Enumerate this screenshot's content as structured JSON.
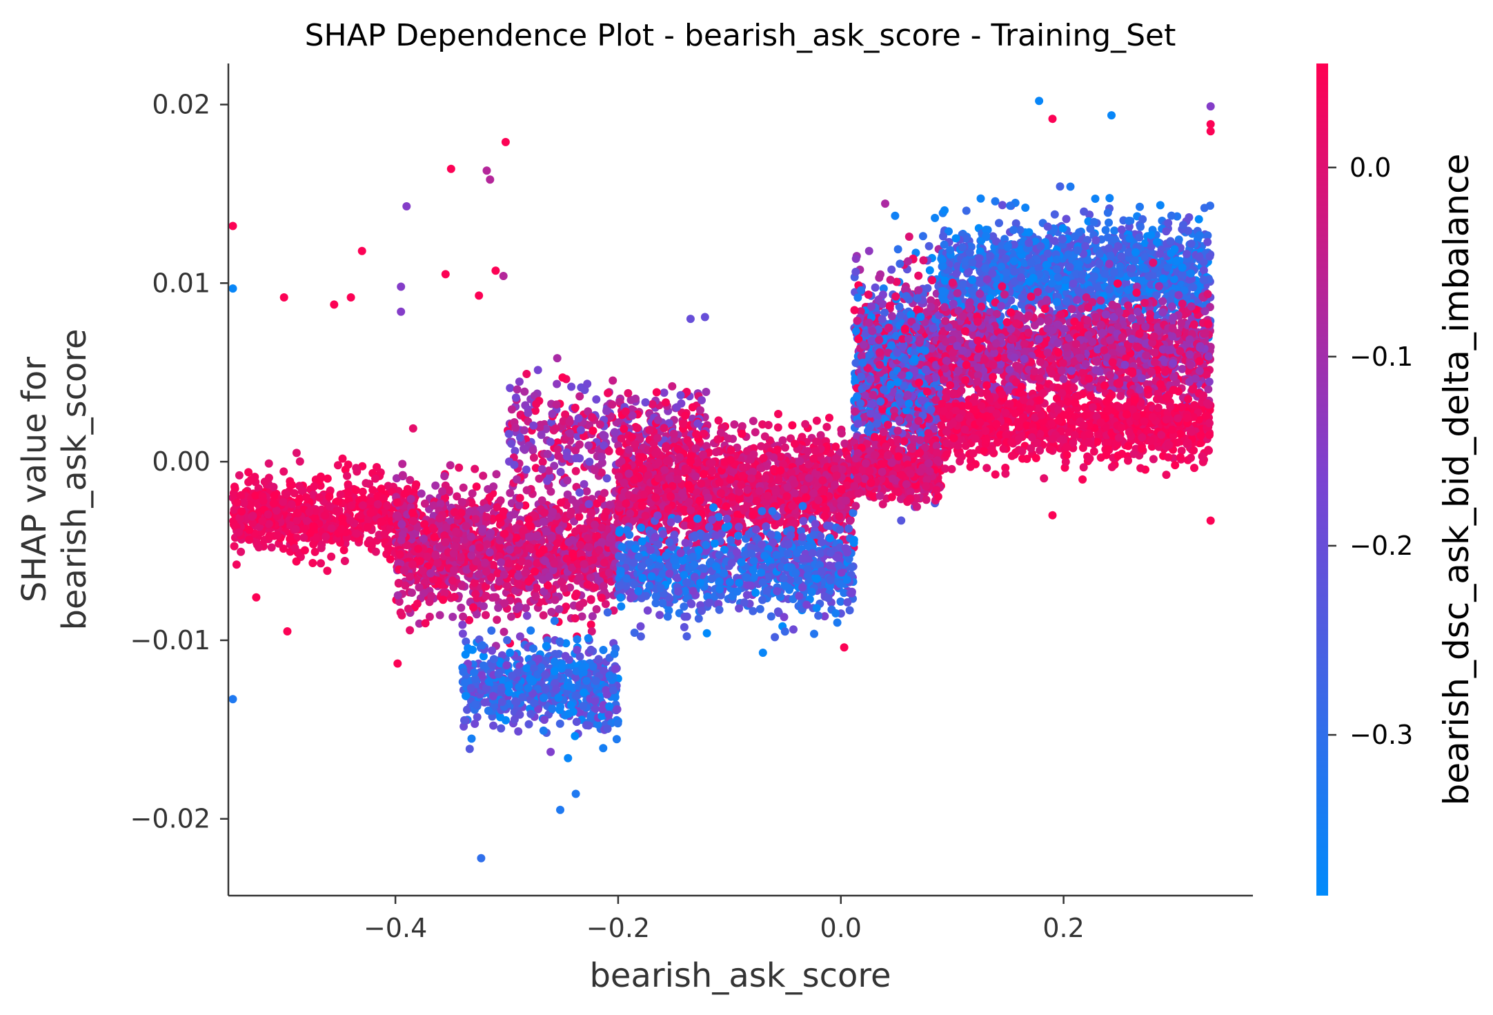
{
  "chart_data": {
    "type": "scatter",
    "title": "SHAP Dependence Plot - bearish_ask_score - Training_Set",
    "xlabel": "bearish_ask_score",
    "ylabel_lines": [
      "SHAP value for",
      "bearish_ask_score"
    ],
    "xlim": [
      -0.55,
      0.37
    ],
    "ylim": [
      -0.0243,
      0.0223
    ],
    "x_ticks": [
      -0.4,
      -0.2,
      0.0,
      0.2
    ],
    "x_tick_labels": [
      "−0.4",
      "−0.2",
      "0.0",
      "0.2"
    ],
    "y_ticks": [
      0.02,
      0.01,
      0.0,
      -0.01,
      -0.02
    ],
    "y_tick_labels": [
      "0.02",
      "0.01",
      "0.00",
      "−0.01",
      "−0.02"
    ],
    "grid": false,
    "colorbar": {
      "label": "bearish_dsc_ask_bid_delta_imbalance",
      "range": [
        -0.385,
        0.055
      ],
      "ticks": [
        0.0,
        -0.1,
        -0.2,
        -0.3
      ],
      "tick_labels": [
        "0.0",
        "−0.1",
        "−0.2",
        "−0.3"
      ],
      "color_low": "#008bfb",
      "color_mid": "#7b42d1",
      "color_high": "#ff0052"
    },
    "notable_points": [
      {
        "x": -0.546,
        "y": 0.0132,
        "c": 0.05
      },
      {
        "x": -0.546,
        "y": 0.0097,
        "c": -0.37
      },
      {
        "x": -0.546,
        "y": -0.0133,
        "c": -0.33
      },
      {
        "x": -0.525,
        "y": -0.0076,
        "c": 0.05
      },
      {
        "x": -0.5,
        "y": 0.0092,
        "c": 0.05
      },
      {
        "x": -0.497,
        "y": -0.0095,
        "c": 0.05
      },
      {
        "x": -0.455,
        "y": 0.0088,
        "c": 0.05
      },
      {
        "x": -0.44,
        "y": 0.0092,
        "c": 0.05
      },
      {
        "x": -0.43,
        "y": 0.0118,
        "c": 0.05
      },
      {
        "x": -0.39,
        "y": 0.0143,
        "c": -0.15
      },
      {
        "x": -0.395,
        "y": 0.0098,
        "c": -0.15
      },
      {
        "x": -0.395,
        "y": 0.0084,
        "c": -0.15
      },
      {
        "x": -0.398,
        "y": -0.0113,
        "c": 0.05
      },
      {
        "x": -0.35,
        "y": 0.0164,
        "c": 0.05
      },
      {
        "x": -0.355,
        "y": 0.0105,
        "c": 0.05
      },
      {
        "x": -0.325,
        "y": 0.0093,
        "c": 0.05
      },
      {
        "x": -0.318,
        "y": 0.0163,
        "c": -0.07
      },
      {
        "x": -0.315,
        "y": 0.0158,
        "c": -0.07
      },
      {
        "x": -0.31,
        "y": 0.0107,
        "c": 0.05
      },
      {
        "x": -0.301,
        "y": 0.0179,
        "c": 0.05
      },
      {
        "x": -0.303,
        "y": 0.0104,
        "c": -0.07
      },
      {
        "x": -0.323,
        "y": -0.0222,
        "c": -0.3
      },
      {
        "x": -0.252,
        "y": -0.0195,
        "c": -0.33
      },
      {
        "x": -0.238,
        "y": -0.0186,
        "c": -0.33
      },
      {
        "x": -0.245,
        "y": -0.0166,
        "c": -0.37
      },
      {
        "x": -0.135,
        "y": 0.008,
        "c": -0.2
      },
      {
        "x": -0.122,
        "y": 0.0081,
        "c": -0.2
      },
      {
        "x": -0.07,
        "y": -0.0107,
        "c": -0.37
      },
      {
        "x": 0.003,
        "y": -0.0104,
        "c": 0.05
      },
      {
        "x": 0.178,
        "y": 0.0202,
        "c": -0.37
      },
      {
        "x": 0.19,
        "y": 0.0192,
        "c": 0.05
      },
      {
        "x": 0.243,
        "y": 0.0194,
        "c": -0.37
      },
      {
        "x": 0.332,
        "y": 0.0199,
        "c": -0.15
      },
      {
        "x": 0.332,
        "y": 0.0189,
        "c": 0.05
      },
      {
        "x": 0.332,
        "y": 0.0185,
        "c": 0.05
      },
      {
        "x": 0.332,
        "y": -0.0033,
        "c": 0.05
      },
      {
        "x": 0.19,
        "y": -0.003,
        "c": 0.05
      }
    ],
    "cluster_regions": [
      {
        "x": [
          -0.546,
          -0.38
        ],
        "y_center": -0.003,
        "y_spread": 0.002,
        "c": [
          0.0,
          0.055
        ],
        "count": 700
      },
      {
        "x": [
          -0.4,
          -0.2
        ],
        "y_center": -0.005,
        "y_spread": 0.0035,
        "c": [
          -0.1,
          0.055
        ],
        "count": 1400
      },
      {
        "x": [
          -0.34,
          -0.2
        ],
        "y_center": -0.0125,
        "y_spread": 0.0025,
        "c": [
          -0.385,
          -0.15
        ],
        "count": 600
      },
      {
        "x": [
          -0.3,
          -0.12
        ],
        "y_center": 0.0015,
        "y_spread": 0.003,
        "c": [
          -0.2,
          0.055
        ],
        "count": 400
      },
      {
        "x": [
          -0.2,
          0.012
        ],
        "y_center": -0.0015,
        "y_spread": 0.003,
        "c": [
          -0.05,
          0.055
        ],
        "count": 1500
      },
      {
        "x": [
          -0.2,
          0.012
        ],
        "y_center": -0.006,
        "y_spread": 0.0025,
        "c": [
          -0.385,
          -0.15
        ],
        "count": 900
      },
      {
        "x": [
          0.012,
          0.09
        ],
        "y_center": 0.005,
        "y_spread": 0.005,
        "c": [
          -0.385,
          0.055
        ],
        "count": 1300
      },
      {
        "x": [
          0.012,
          0.09
        ],
        "y_center": -0.0005,
        "y_spread": 0.0015,
        "c": [
          -0.05,
          0.055
        ],
        "count": 500
      },
      {
        "x": [
          0.09,
          0.332
        ],
        "y_center": 0.0105,
        "y_spread": 0.003,
        "c": [
          -0.385,
          -0.2
        ],
        "count": 1500
      },
      {
        "x": [
          0.09,
          0.332
        ],
        "y_center": 0.006,
        "y_spread": 0.003,
        "c": [
          -0.15,
          0.055
        ],
        "count": 1500
      },
      {
        "x": [
          0.09,
          0.332
        ],
        "y_center": 0.002,
        "y_spread": 0.002,
        "c": [
          0.0,
          0.055
        ],
        "count": 1000
      }
    ]
  }
}
